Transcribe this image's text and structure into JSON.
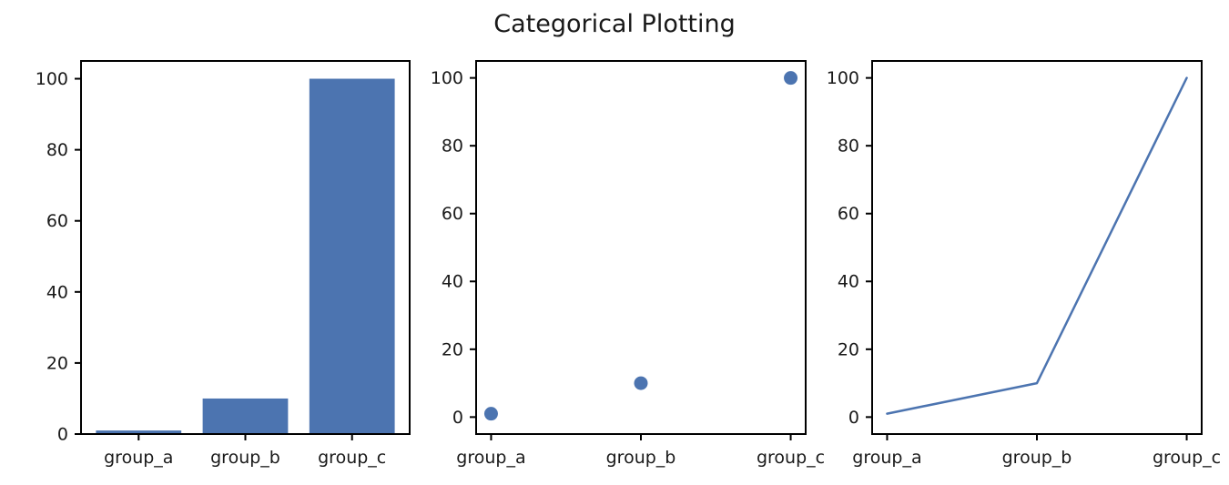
{
  "figure": {
    "suptitle": "Categorical Plotting",
    "background_color": "#ffffff",
    "text_color": "#1a1a1a",
    "axis_color": "#000000",
    "accent_color": "#4c74b0"
  },
  "chart_data": [
    {
      "type": "bar",
      "title": "",
      "categories": [
        "group_a",
        "group_b",
        "group_c"
      ],
      "values": [
        1,
        10,
        100
      ],
      "xlabel": "",
      "ylabel": "",
      "xlim": [
        -0.54,
        2.54
      ],
      "ylim": [
        0,
        105
      ],
      "yticks": [
        0,
        20,
        40,
        60,
        80,
        100
      ],
      "bar_width": 0.8,
      "color": "#4c74b0",
      "grid": false,
      "legend": null
    },
    {
      "type": "scatter",
      "title": "",
      "categories": [
        "group_a",
        "group_b",
        "group_c"
      ],
      "values": [
        1,
        10,
        100
      ],
      "xlabel": "",
      "ylabel": "",
      "xlim": [
        -0.1,
        2.1
      ],
      "ylim": [
        -5,
        105
      ],
      "yticks": [
        0,
        20,
        40,
        60,
        80,
        100
      ],
      "marker_radius": 7.5,
      "color": "#4c74b0",
      "grid": false,
      "legend": null
    },
    {
      "type": "line",
      "title": "",
      "categories": [
        "group_a",
        "group_b",
        "group_c"
      ],
      "values": [
        1,
        10,
        100
      ],
      "xlabel": "",
      "ylabel": "",
      "xlim": [
        -0.1,
        2.1
      ],
      "ylim": [
        -5,
        105
      ],
      "yticks": [
        0,
        20,
        40,
        60,
        80,
        100
      ],
      "line_width": 2.5,
      "color": "#4c74b0",
      "grid": false,
      "legend": null
    }
  ]
}
